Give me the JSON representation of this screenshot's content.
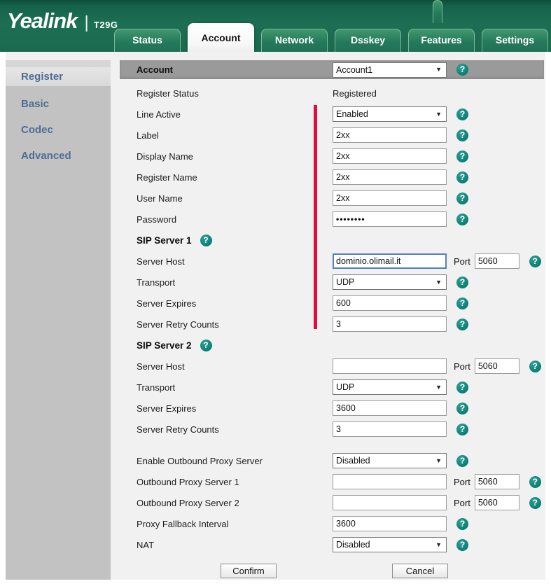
{
  "colors": {
    "header_green": "#1d6f54",
    "accent_teal": "#0d857c",
    "required_red": "#e50a3c",
    "account_bar_gray": "#9a9a9a",
    "sidebar_gray": "#c2c2c2",
    "sidebar_text_blue": "#4e6d95"
  },
  "icons": {
    "help_glyph": "?",
    "select_arrow": "▼",
    "logo_divider": "|"
  },
  "header": {
    "logo": "Yealink",
    "model": "T29G",
    "tabs": [
      {
        "label": "Status",
        "active": false
      },
      {
        "label": "Account",
        "active": true
      },
      {
        "label": "Network",
        "active": false
      },
      {
        "label": "Dsskey",
        "active": false
      },
      {
        "label": "Features",
        "active": false
      },
      {
        "label": "Settings",
        "active": false
      }
    ]
  },
  "sidebar": {
    "items": [
      {
        "label": "Register",
        "active": true
      },
      {
        "label": "Basic",
        "active": false
      },
      {
        "label": "Codec",
        "active": false
      },
      {
        "label": "Advanced",
        "active": false
      }
    ]
  },
  "account_bar": {
    "label": "Account",
    "value": "Account1"
  },
  "main": {
    "rows": [
      {
        "type": "static",
        "label": "Register Status",
        "value": "Registered"
      },
      {
        "type": "select",
        "label": "Line Active",
        "value": "Enabled",
        "help": true
      },
      {
        "type": "text",
        "label": "Label",
        "value": "2xx",
        "help": true
      },
      {
        "type": "text",
        "label": "Display Name",
        "value": "2xx",
        "help": true
      },
      {
        "type": "text",
        "label": "Register Name",
        "value": "2xx",
        "help": true
      },
      {
        "type": "text",
        "label": "User Name",
        "value": "2xx",
        "help": true
      },
      {
        "type": "password",
        "label": "Password",
        "value": "••••••••",
        "help": true
      },
      {
        "type": "section",
        "label": "SIP Server 1",
        "help": true
      },
      {
        "type": "text-port",
        "label": "Server Host",
        "value": "dominio.olimail.it",
        "focused": true,
        "port_label": "Port",
        "port": "5060",
        "help": true
      },
      {
        "type": "select",
        "label": "Transport",
        "value": "UDP",
        "help": true
      },
      {
        "type": "text",
        "label": "Server Expires",
        "value": "600",
        "help": true
      },
      {
        "type": "text",
        "label": "Server Retry Counts",
        "value": "3",
        "help": true
      },
      {
        "type": "section",
        "label": "SIP Server 2",
        "help": true
      },
      {
        "type": "text-port",
        "label": "Server Host",
        "value": "",
        "port_label": "Port",
        "port": "5060",
        "help": true
      },
      {
        "type": "select",
        "label": "Transport",
        "value": "UDP",
        "help": true
      },
      {
        "type": "text",
        "label": "Server Expires",
        "value": "3600",
        "help": true
      },
      {
        "type": "text",
        "label": "Server Retry Counts",
        "value": "3",
        "help": true
      },
      {
        "type": "gap"
      },
      {
        "type": "select",
        "label": "Enable Outbound Proxy Server",
        "value": "Disabled",
        "help": true
      },
      {
        "type": "text-port",
        "label": "Outbound Proxy Server 1",
        "value": "",
        "port_label": "Port",
        "port": "5060",
        "help": true
      },
      {
        "type": "text-port",
        "label": "Outbound Proxy Server 2",
        "value": "",
        "port_label": "Port",
        "port": "5060",
        "help": true
      },
      {
        "type": "text",
        "label": "Proxy Fallback Interval",
        "value": "3600",
        "help": true
      },
      {
        "type": "select",
        "label": "NAT",
        "value": "Disabled",
        "help": true
      }
    ]
  },
  "buttons": {
    "confirm": "Confirm",
    "cancel": "Cancel"
  }
}
